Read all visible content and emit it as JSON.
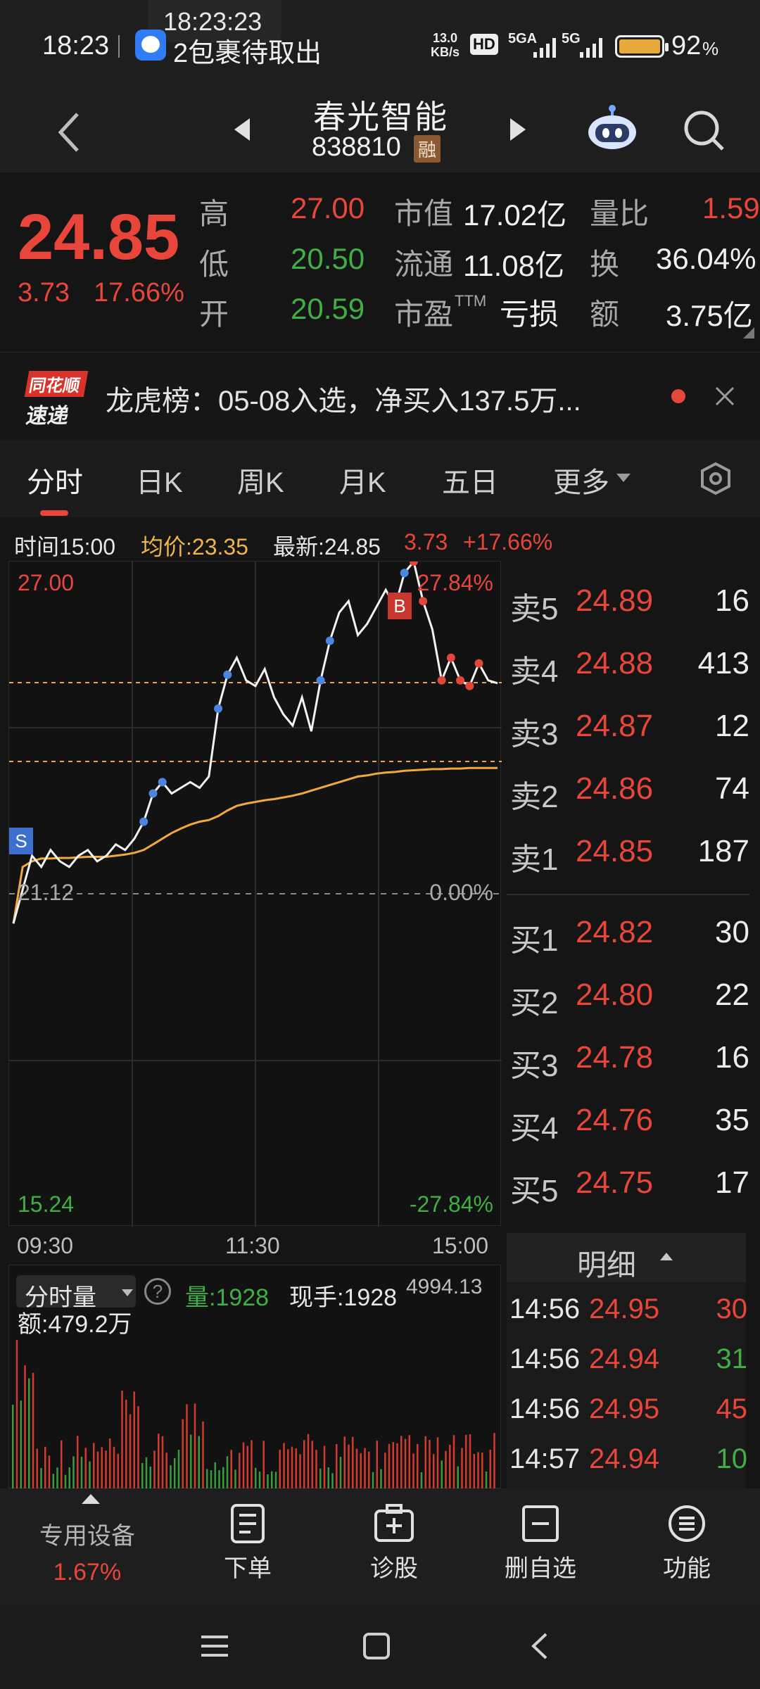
{
  "status_bar": {
    "time": "18:23",
    "overlay_time": "18:23:23",
    "notification": "2包裹待取出",
    "net_speed_value": "13.0",
    "net_speed_unit": "KB/s",
    "hd": "HD",
    "sig1": "5GA",
    "sig2": "5G",
    "battery": "92",
    "battery_unit": "%"
  },
  "header": {
    "stock_name": "春光智能",
    "stock_code": "838810",
    "margin_badge": "融"
  },
  "quote": {
    "price": "24.85",
    "change": "3.73",
    "change_pct": "17.66%",
    "high_label": "高",
    "high": "27.00",
    "low_label": "低",
    "low": "20.50",
    "open_label": "开",
    "open": "20.59",
    "mcap_label": "市值",
    "mcap": "17.02亿",
    "float_label": "流通",
    "float": "11.08亿",
    "pe_label": "市盈",
    "pe_sup": "TTM",
    "pe": "亏损",
    "vr_label": "量比",
    "vr": "1.59",
    "turnover_label": "换",
    "turnover": "36.04%",
    "amount_label": "额",
    "amount": "3.75亿"
  },
  "banner": {
    "logo_line1": "同花顺",
    "logo_line2": "速递",
    "text": "龙虎榜：05-08入选，净买入137.5万..."
  },
  "tabs": {
    "items": [
      "分时",
      "日K",
      "周K",
      "月K",
      "五日",
      "更多"
    ]
  },
  "infoline": {
    "time": "时间15:00",
    "avg": "均价:23.35",
    "latest": "最新:24.85",
    "chg": "3.73",
    "pct": "+17.66%"
  },
  "chart_labels": {
    "top_price": "27.00",
    "top_pct": "27.84%",
    "mid_price": "21.12",
    "mid_pct": "0.00%",
    "bottom_price": "15.24",
    "bottom_pct": "-27.84%",
    "x_start": "09:30",
    "x_mid": "11:30",
    "x_end": "15:00",
    "marker_s": "S",
    "marker_b": "B"
  },
  "volume_panel": {
    "selector": "分时量",
    "help": "?",
    "vol": "量:1928",
    "hand": "现手:1928",
    "right_value": "4994.13",
    "amount": "额:479.2万"
  },
  "orderbook": {
    "asks": [
      {
        "label": "卖5",
        "price": "24.89",
        "qty": "16"
      },
      {
        "label": "卖4",
        "price": "24.88",
        "qty": "413"
      },
      {
        "label": "卖3",
        "price": "24.87",
        "qty": "12"
      },
      {
        "label": "卖2",
        "price": "24.86",
        "qty": "74"
      },
      {
        "label": "卖1",
        "price": "24.85",
        "qty": "187"
      }
    ],
    "bids": [
      {
        "label": "买1",
        "price": "24.82",
        "qty": "30"
      },
      {
        "label": "买2",
        "price": "24.80",
        "qty": "22"
      },
      {
        "label": "买3",
        "price": "24.78",
        "qty": "16"
      },
      {
        "label": "买4",
        "price": "24.76",
        "qty": "35"
      },
      {
        "label": "买5",
        "price": "24.75",
        "qty": "17"
      }
    ]
  },
  "detail": {
    "title": "明细",
    "rows": [
      {
        "time": "14:56",
        "price": "24.95",
        "vol": "30",
        "dir": "red"
      },
      {
        "time": "14:56",
        "price": "24.94",
        "vol": "31",
        "dir": "green"
      },
      {
        "time": "14:56",
        "price": "24.95",
        "vol": "45",
        "dir": "red"
      },
      {
        "time": "14:57",
        "price": "24.94",
        "vol": "10",
        "dir": "green"
      }
    ]
  },
  "bottom_nav": {
    "device_label": "专用设备",
    "device_pct": "1.67%",
    "order": "下单",
    "diagnose": "诊股",
    "remove_watch": "删自选",
    "functions": "功能"
  },
  "chart_data": {
    "type": "line",
    "y_range": [
      15.24,
      27.0
    ],
    "base_price": 21.12,
    "series": [
      {
        "name": "",
        "note": "price",
        "values": [
          20.6,
          21.2,
          21.8,
          21.6,
          21.9,
          21.7,
          21.6,
          21.8,
          21.9,
          21.7,
          21.8,
          22.0,
          21.9,
          22.1,
          22.4,
          22.9,
          23.1,
          22.9,
          23.0,
          23.1,
          23.0,
          23.2,
          24.4,
          25.0,
          25.3,
          24.9,
          24.8,
          25.1,
          24.6,
          24.3,
          24.1,
          24.6,
          24.0,
          24.9,
          25.6,
          26.1,
          26.3,
          25.7,
          25.9,
          26.2,
          26.5,
          26.2,
          26.8,
          27.0,
          26.3,
          25.8,
          24.9,
          25.3,
          24.9,
          24.8,
          25.2,
          24.9,
          24.85
        ]
      },
      {
        "name": "",
        "note": "average",
        "values": [
          20.6,
          21.6,
          21.7,
          21.75,
          21.75,
          21.76,
          21.76,
          21.77,
          21.78,
          21.78,
          21.78,
          21.8,
          21.82,
          21.85,
          21.9,
          22.0,
          22.1,
          22.2,
          22.28,
          22.35,
          22.4,
          22.43,
          22.5,
          22.6,
          22.68,
          22.72,
          22.75,
          22.78,
          22.8,
          22.83,
          22.86,
          22.9,
          22.95,
          23.0,
          23.05,
          23.1,
          23.15,
          23.2,
          23.22,
          23.25,
          23.27,
          23.28,
          23.3,
          23.31,
          23.32,
          23.33,
          23.33,
          23.34,
          23.34,
          23.35,
          23.35,
          23.35,
          23.35
        ]
      }
    ]
  }
}
